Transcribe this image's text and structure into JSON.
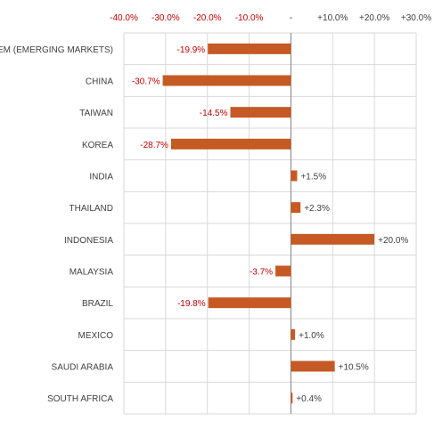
{
  "chart_data": {
    "type": "bar",
    "orientation": "horizontal",
    "categories": [
      "EM (EMERGING MARKETS)",
      "CHINA",
      "TAIWAN",
      "KOREA",
      "INDIA",
      "THAILAND",
      "INDONESIA",
      "MALAYSIA",
      "BRAZIL",
      "MEXICO",
      "SAUDI ARABIA",
      "SOUTH AFRICA"
    ],
    "values": [
      -19.9,
      -30.7,
      -14.5,
      -28.7,
      1.5,
      2.3,
      20.0,
      -3.7,
      -19.8,
      1.0,
      10.5,
      0.4
    ],
    "data_labels": [
      "-19.9%",
      "-30.7%",
      "-14.5%",
      "-28.7%",
      "+1.5%",
      "+2.3%",
      "+20.0%",
      "-3.7%",
      "-19.8%",
      "+1.0%",
      "+10.5%",
      "+0.4%"
    ],
    "x_ticks": [
      -40,
      -30,
      -20,
      -10,
      0,
      10,
      20,
      30
    ],
    "x_tick_labels": [
      "-40.0%",
      "-30.0%",
      "-20.0%",
      "-10.0%",
      "-",
      "+10.0%",
      "+20.0%",
      "+30.0%"
    ],
    "xlim": [
      -40,
      30
    ],
    "axis_position": "top",
    "grid": true,
    "legend": "none",
    "title": "",
    "xlabel": "",
    "ylabel": "",
    "colors": {
      "bar": "#c55a24",
      "negative_text": "#c00000",
      "positive_text": "#404040",
      "grid": "#d9d9d9",
      "zero_line": "#808080"
    }
  }
}
